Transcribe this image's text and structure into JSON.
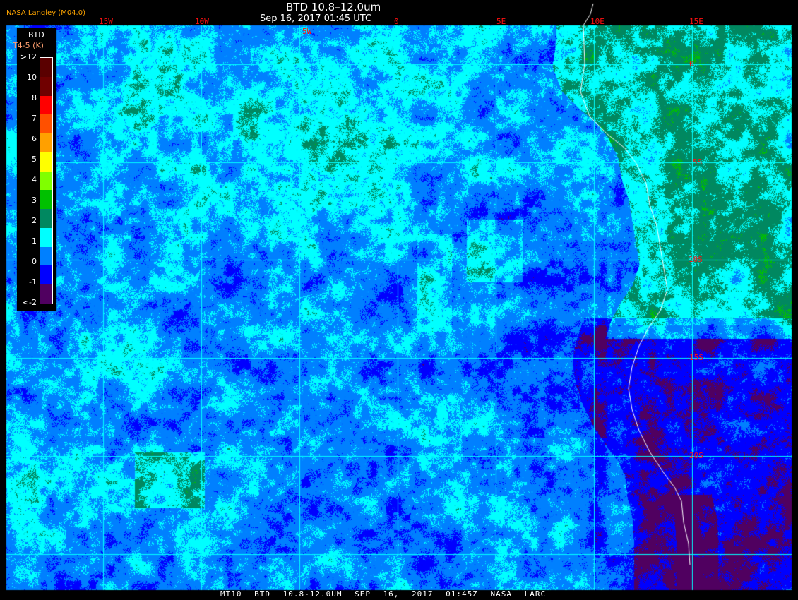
{
  "header": {
    "title": "BTD 10.8–12.0um",
    "datetime": "Sep 16, 2017 01:45 UTC",
    "source": "NASA Langley (M04.0)"
  },
  "footer": {
    "text": "MT10  BTD 10.8-12.0UM   SEP 16, 2017 01:45Z   NASA LARC"
  },
  "legend": {
    "title": "BTD",
    "unit": "T4-5 (K)",
    "ticks": [
      ">12",
      "10",
      "8",
      "7",
      "6",
      "5",
      "4",
      "3",
      "2",
      "1",
      "0",
      "-1",
      "<-2"
    ],
    "colors": [
      "#5a0000",
      "#700000",
      "#ff0000",
      "#ff5000",
      "#ffa000",
      "#ffff00",
      "#80ff00",
      "#00c000",
      "#008860",
      "#00ffff",
      "#0080ff",
      "#0000ff",
      "#500060"
    ]
  },
  "grid": {
    "longitudes": [
      "15W",
      "10W",
      "5W",
      "0",
      "5E",
      "10E",
      "15E"
    ],
    "latitudes": [
      "0",
      "5S",
      "10S",
      "15S",
      "20S"
    ],
    "line_color": "#00ffff",
    "label_color": "#ff1010",
    "coastline_color": "#ffffff"
  }
}
